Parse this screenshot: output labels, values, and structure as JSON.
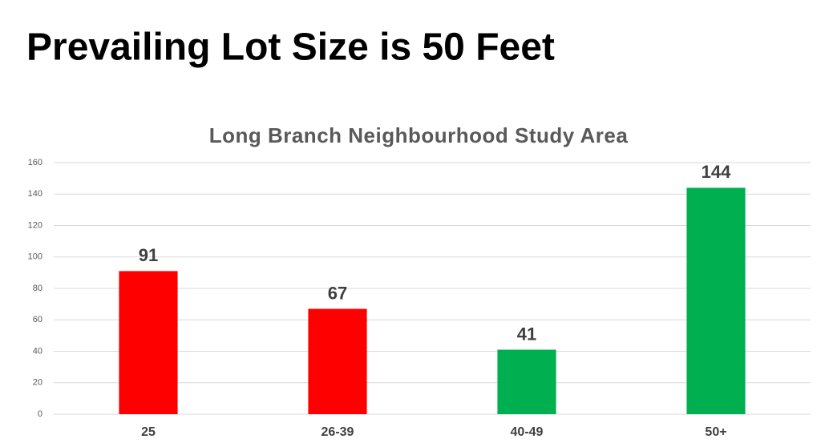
{
  "heading": "Prevailing Lot Size is 50 Feet",
  "chart_data": {
    "type": "bar",
    "title": "Long Branch Neighbourhood Study Area",
    "categories": [
      "25",
      "26-39",
      "40-49",
      "50+"
    ],
    "values": [
      91,
      67,
      41,
      144
    ],
    "colors": [
      "#ff0000",
      "#ff0000",
      "#00b050",
      "#00b050"
    ],
    "ylim": [
      0,
      160
    ],
    "yticks": [
      0,
      20,
      40,
      60,
      80,
      100,
      120,
      140,
      160
    ],
    "grid": true
  }
}
